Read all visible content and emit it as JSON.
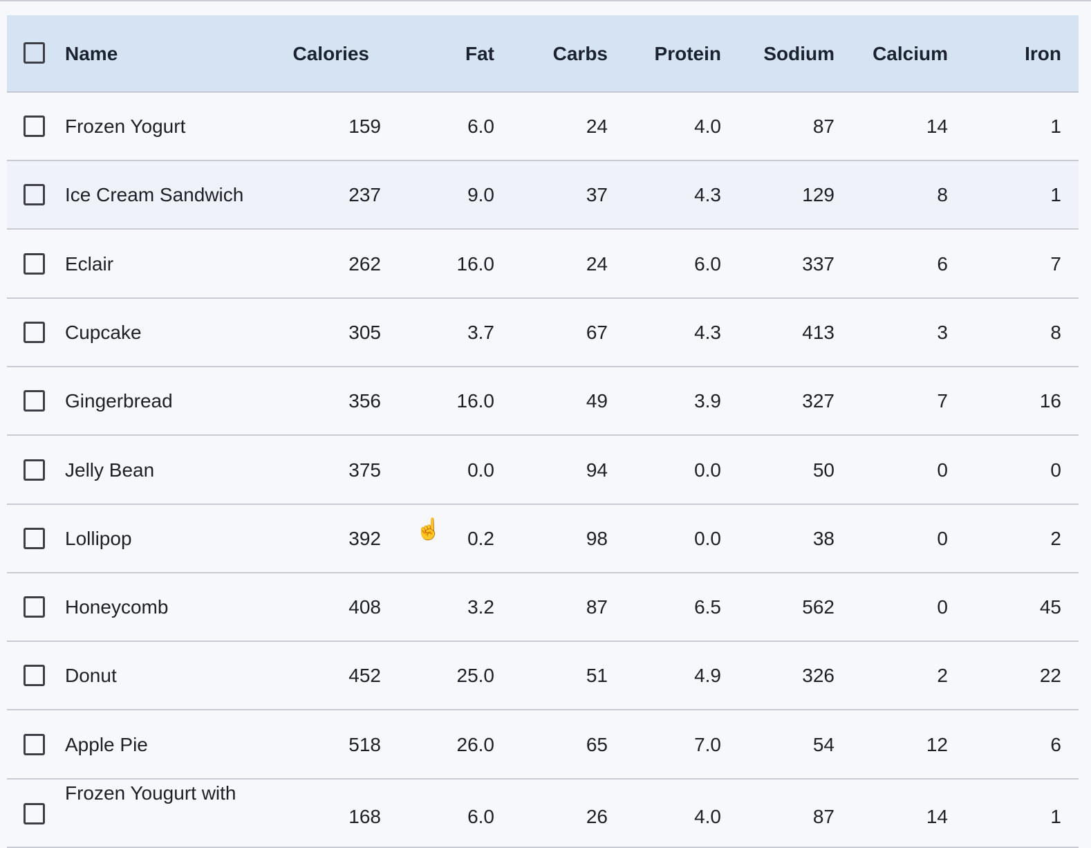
{
  "table": {
    "columns": [
      "Name",
      "Calories",
      "Fat",
      "Carbs",
      "Protein",
      "Sodium",
      "Calcium",
      "Iron"
    ],
    "rows": [
      {
        "name": "Frozen Yogurt",
        "values": [
          "159",
          "6.0",
          "24",
          "4.0",
          "87",
          "14",
          "1"
        ]
      },
      {
        "name": "Ice Cream Sandwich",
        "values": [
          "237",
          "9.0",
          "37",
          "4.3",
          "129",
          "8",
          "1"
        ]
      },
      {
        "name": "Eclair",
        "values": [
          "262",
          "16.0",
          "24",
          "6.0",
          "337",
          "6",
          "7"
        ]
      },
      {
        "name": "Cupcake",
        "values": [
          "305",
          "3.7",
          "67",
          "4.3",
          "413",
          "3",
          "8"
        ]
      },
      {
        "name": "Gingerbread",
        "values": [
          "356",
          "16.0",
          "49",
          "3.9",
          "327",
          "7",
          "16"
        ]
      },
      {
        "name": "Jelly Bean",
        "values": [
          "375",
          "0.0",
          "94",
          "0.0",
          "50",
          "0",
          "0"
        ]
      },
      {
        "name": "Lollipop",
        "values": [
          "392",
          "0.2",
          "98",
          "0.0",
          "38",
          "0",
          "2"
        ]
      },
      {
        "name": "Honeycomb",
        "values": [
          "408",
          "3.2",
          "87",
          "6.5",
          "562",
          "0",
          "45"
        ]
      },
      {
        "name": "Donut",
        "values": [
          "452",
          "25.0",
          "51",
          "4.9",
          "326",
          "2",
          "22"
        ]
      },
      {
        "name": "Apple Pie",
        "values": [
          "518",
          "26.0",
          "65",
          "7.0",
          "54",
          "12",
          "6"
        ]
      },
      {
        "name": "Frozen Yougurt with",
        "values": [
          "168",
          "6.0",
          "26",
          "4.0",
          "87",
          "14",
          "1"
        ]
      }
    ],
    "hovered_row": 1
  },
  "colors": {
    "header_bg": "#d6e3f3",
    "page_bg": "#f6f8fc",
    "divider": "#c8cbd1"
  }
}
